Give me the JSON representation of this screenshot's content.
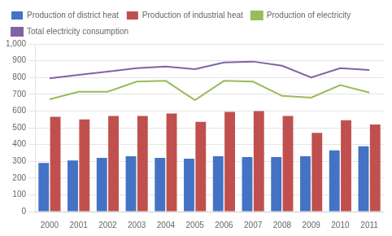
{
  "chart_data": {
    "type": "bar",
    "categories": [
      "2000",
      "2001",
      "2002",
      "2003",
      "2004",
      "2005",
      "2006",
      "2007",
      "2008",
      "2009",
      "2010",
      "2011"
    ],
    "series": [
      {
        "name": "Production of district heat",
        "type": "bar",
        "color": "#4472C4",
        "values": [
          290,
          305,
          320,
          330,
          320,
          315,
          330,
          325,
          325,
          330,
          365,
          390
        ]
      },
      {
        "name": "Production of industrial heat",
        "type": "bar",
        "color": "#C0504D",
        "values": [
          565,
          550,
          570,
          570,
          585,
          535,
          595,
          600,
          570,
          470,
          545,
          520
        ]
      },
      {
        "name": "Production of electricity",
        "type": "line",
        "color": "#9BBB59",
        "values": [
          670,
          715,
          715,
          775,
          780,
          665,
          780,
          775,
          690,
          680,
          755,
          710
        ]
      },
      {
        "name": "Total electricity consumption",
        "type": "line",
        "color": "#8064A2",
        "values": [
          795,
          815,
          835,
          855,
          865,
          850,
          890,
          895,
          870,
          800,
          855,
          845
        ]
      }
    ],
    "ylim": [
      0,
      1000
    ],
    "yticks": [
      0,
      100,
      200,
      300,
      400,
      500,
      600,
      700,
      800,
      900,
      {
        "value": 1000,
        "label": "1,000"
      }
    ],
    "grid": true,
    "legend": "upper left"
  }
}
